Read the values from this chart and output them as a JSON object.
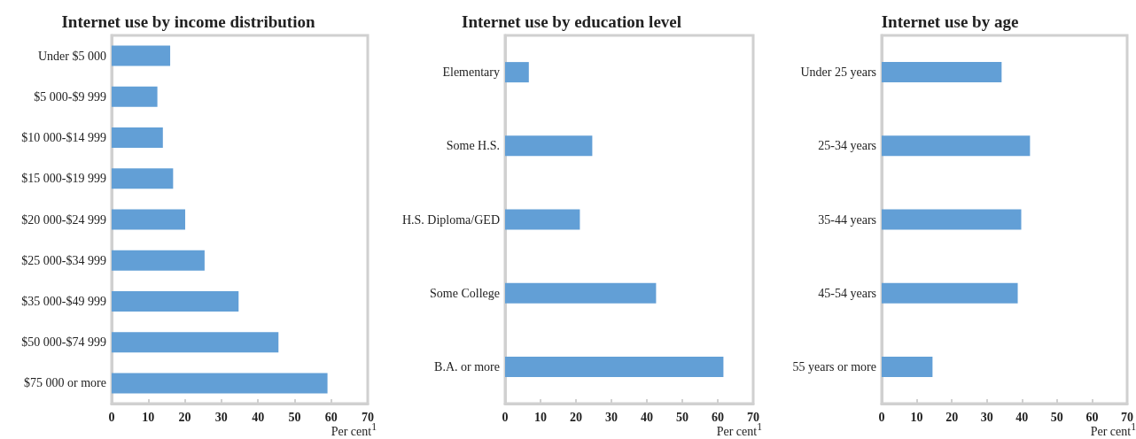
{
  "chart_data": [
    {
      "type": "bar",
      "orientation": "horizontal",
      "title": "Internet use by income distribution",
      "xlabel": "Per cent$^{1}$",
      "categories": [
        "Under $5 000",
        "$5 000-$9 999",
        "$10 000-$14 999",
        "$15 000-$19 999",
        "$20 000-$24 999",
        "$25 000-$34 999",
        "$35 000-$49 999",
        "$50 000-$74 999",
        "$75 000 or more"
      ],
      "values": [
        16.0,
        12.5,
        14.0,
        16.8,
        20.1,
        25.4,
        34.7,
        45.6,
        59.0
      ],
      "color": "#629fd6",
      "xlim": [
        0,
        70
      ],
      "xticks": [
        0,
        10,
        20,
        30,
        40,
        50,
        60,
        70
      ]
    },
    {
      "type": "bar",
      "orientation": "horizontal",
      "title": "Internet use by education level",
      "xlabel": "Per cent$^{1}$",
      "categories": [
        "Elementary",
        "Some H.S.",
        "H.S. Diploma/GED",
        "Some College",
        "B.A. or more"
      ],
      "values": [
        6.7,
        24.6,
        21.1,
        42.6,
        61.6
      ],
      "color": "#629fd6",
      "xlim": [
        0,
        70
      ],
      "xticks": [
        0,
        10,
        20,
        30,
        40,
        50,
        60,
        70
      ]
    },
    {
      "type": "bar",
      "orientation": "horizontal",
      "title": "Internet use by age",
      "xlabel": "Per cent$^{1}$",
      "categories": [
        "Under 25 years",
        "25-34 years",
        "35-44 years",
        "45-54 years",
        "55 years or more"
      ],
      "values": [
        34.2,
        42.3,
        39.8,
        38.8,
        14.5
      ],
      "color": "#629fd6",
      "xlim": [
        0,
        70
      ],
      "xticks": [
        0,
        10,
        20,
        30,
        40,
        50,
        60,
        70
      ]
    }
  ]
}
